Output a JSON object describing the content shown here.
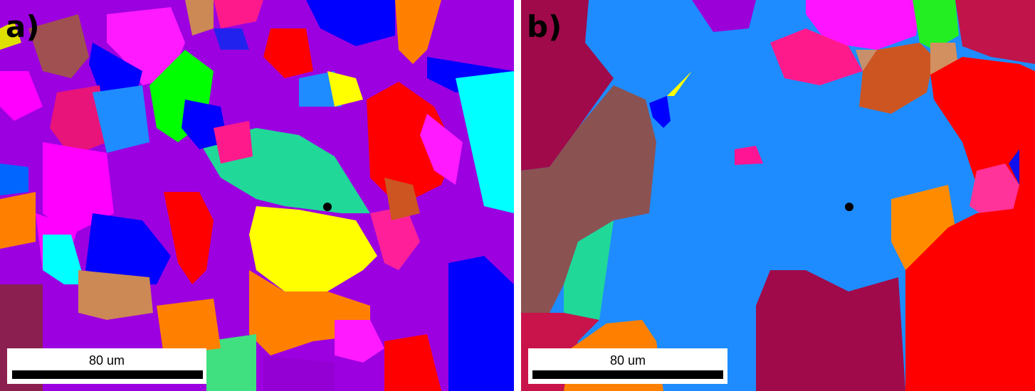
{
  "panels": [
    {
      "label": "a)",
      "scale_bar": "80 um"
    },
    {
      "label": "b)",
      "scale_bar": "80 um"
    }
  ]
}
